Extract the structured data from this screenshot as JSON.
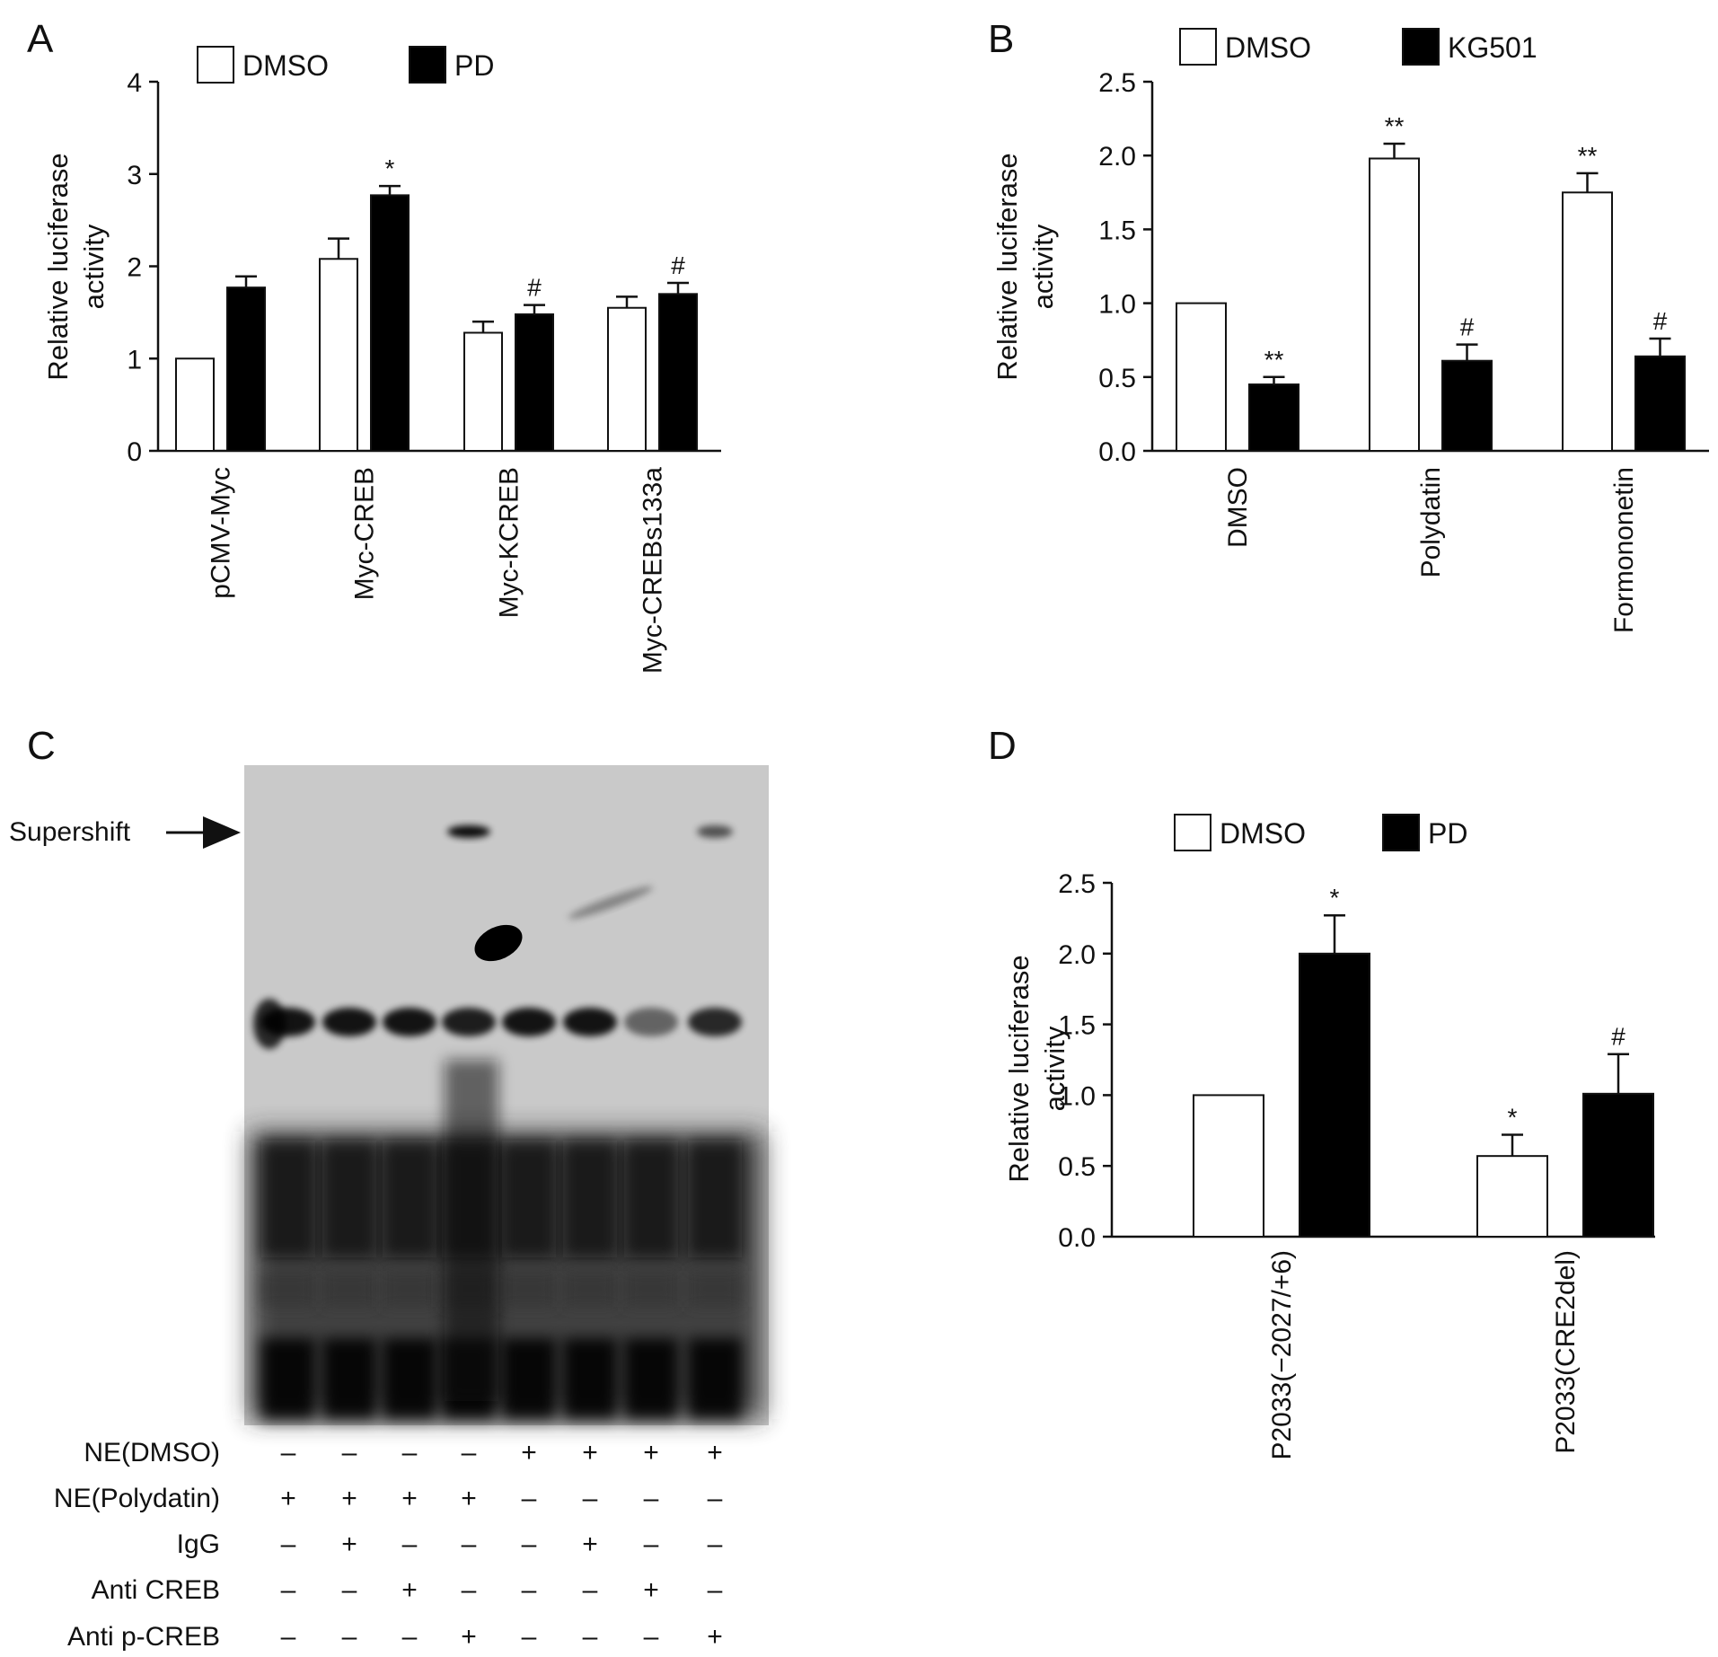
{
  "colors": {
    "open_bar": "#ffffff",
    "filled_bar": "#000000",
    "axis": "#111111",
    "gel_bg": "#c9c9c9",
    "band": "#222222"
  },
  "chart_data": [
    {
      "panel": "A",
      "type": "bar",
      "legend": [
        "DMSO",
        "PD"
      ],
      "legend_placement": "top",
      "categories": [
        "pCMV-Myc",
        "Myc-CREB",
        "Myc-KCREB",
        "Myc-CREBs133a"
      ],
      "ylabel": [
        "Relative luciferase",
        "activity"
      ],
      "ylim": [
        0,
        4
      ],
      "yticks": [
        "0",
        "1",
        "2",
        "3",
        "4"
      ],
      "series": [
        {
          "name": "DMSO",
          "fill": "open",
          "values": [
            1.0,
            2.08,
            1.28,
            1.55
          ],
          "errors": [
            0,
            0.22,
            0.12,
            0.12
          ],
          "annotations": [
            "",
            "",
            "",
            ""
          ]
        },
        {
          "name": "PD",
          "fill": "filled",
          "values": [
            1.77,
            2.77,
            1.48,
            1.7
          ],
          "errors": [
            0.12,
            0.1,
            0.1,
            0.12
          ],
          "annotations": [
            "",
            "*",
            "#",
            "#"
          ]
        }
      ]
    },
    {
      "panel": "B",
      "type": "bar",
      "legend": [
        "DMSO",
        "KG501"
      ],
      "legend_placement": "top",
      "categories": [
        "DMSO",
        "Polydatin",
        "Formononetin"
      ],
      "ylabel": [
        "Relative luciferase",
        "activity"
      ],
      "ylim": [
        0,
        2.5
      ],
      "yticks": [
        "0.0",
        "0.5",
        "1.0",
        "1.5",
        "2.0",
        "2.5"
      ],
      "series": [
        {
          "name": "DMSO",
          "fill": "open",
          "values": [
            1.0,
            1.98,
            1.75
          ],
          "errors": [
            0,
            0.1,
            0.13
          ],
          "annotations": [
            "",
            "**",
            "**"
          ]
        },
        {
          "name": "KG501",
          "fill": "filled",
          "values": [
            0.45,
            0.61,
            0.64
          ],
          "errors": [
            0.05,
            0.11,
            0.12
          ],
          "annotations": [
            "**",
            "#",
            "#"
          ]
        }
      ]
    },
    {
      "panel": "D",
      "type": "bar",
      "legend": [
        "DMSO",
        "PD"
      ],
      "legend_placement": "top",
      "categories": [
        "P2033(−2027/+6)",
        "P2033(CRE2del)"
      ],
      "ylabel": [
        "Relative luciferase",
        "activity"
      ],
      "ylim": [
        0,
        2.5
      ],
      "yticks": [
        "0.0",
        "0.5",
        "1.0",
        "1.5",
        "2.0",
        "2.5"
      ],
      "series": [
        {
          "name": "DMSO",
          "fill": "open",
          "values": [
            1.0,
            0.57
          ],
          "errors": [
            0,
            0.15
          ],
          "annotations": [
            "",
            "*"
          ]
        },
        {
          "name": "PD",
          "fill": "filled",
          "values": [
            2.0,
            1.01
          ],
          "errors": [
            0.27,
            0.28
          ],
          "annotations": [
            "*",
            "#"
          ]
        }
      ]
    }
  ],
  "gel": {
    "panel": "C",
    "arrow_label": "Supershift",
    "rows": [
      {
        "label": "NE(DMSO)",
        "signs": [
          "–",
          "–",
          "–",
          "–",
          "+",
          "+",
          "+",
          "+"
        ]
      },
      {
        "label": "NE(Polydatin)",
        "signs": [
          "+",
          "+",
          "+",
          "+",
          "–",
          "–",
          "–",
          "–"
        ]
      },
      {
        "label": "IgG",
        "signs": [
          "–",
          "+",
          "–",
          "–",
          "–",
          "+",
          "–",
          "–"
        ]
      },
      {
        "label": "Anti CREB",
        "signs": [
          "–",
          "–",
          "+",
          "–",
          "–",
          "–",
          "+",
          "–"
        ]
      },
      {
        "label": "Anti p-CREB",
        "signs": [
          "–",
          "–",
          "–",
          "+",
          "–",
          "–",
          "–",
          "+"
        ]
      }
    ],
    "band_intensity": [
      0.9,
      0.9,
      0.9,
      0.85,
      0.9,
      0.9,
      0.5,
      0.8
    ],
    "supershift_lanes": [
      3,
      7
    ]
  }
}
